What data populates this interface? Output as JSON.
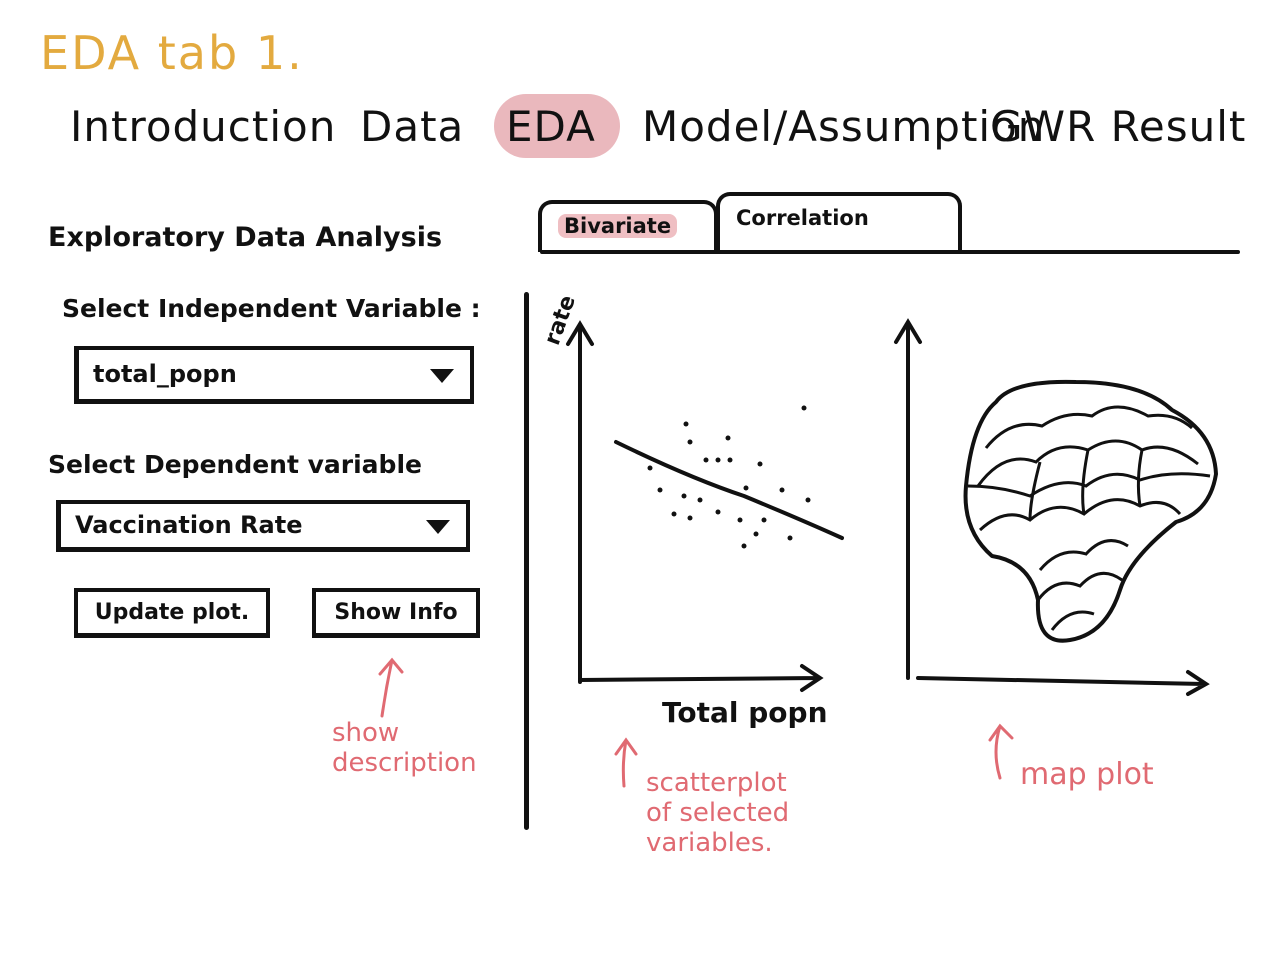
{
  "sketch_title": "EDA tab 1.",
  "nav": {
    "items": [
      {
        "label": "Introduction"
      },
      {
        "label": "Data"
      },
      {
        "label": "EDA",
        "active": true
      },
      {
        "label": "Model/Assumption"
      },
      {
        "label": "GWR Result"
      }
    ]
  },
  "sidebar": {
    "heading": "Exploratory Data Analysis",
    "independent_label": "Select Independent Variable :",
    "independent_value": "total_popn",
    "dependent_label": "Select Dependent variable",
    "dependent_value": "Vaccination Rate",
    "update_button": "Update plot.",
    "info_button": "Show Info"
  },
  "tabs": [
    {
      "label": "Bivariate",
      "active": true
    },
    {
      "label": "Correlation",
      "active": false
    }
  ],
  "scatter": {
    "ylabel": "rate",
    "xlabel": "Total popn"
  },
  "annotations": {
    "show_description": "show\ndescription",
    "scatterplot": "scatterplot\nof selected\nvariables.",
    "map_plot": "map plot"
  },
  "colors": {
    "title": "#e3aa3f",
    "highlight": "#eab8bd",
    "annotation": "#e06a72",
    "ink": "#111111"
  }
}
